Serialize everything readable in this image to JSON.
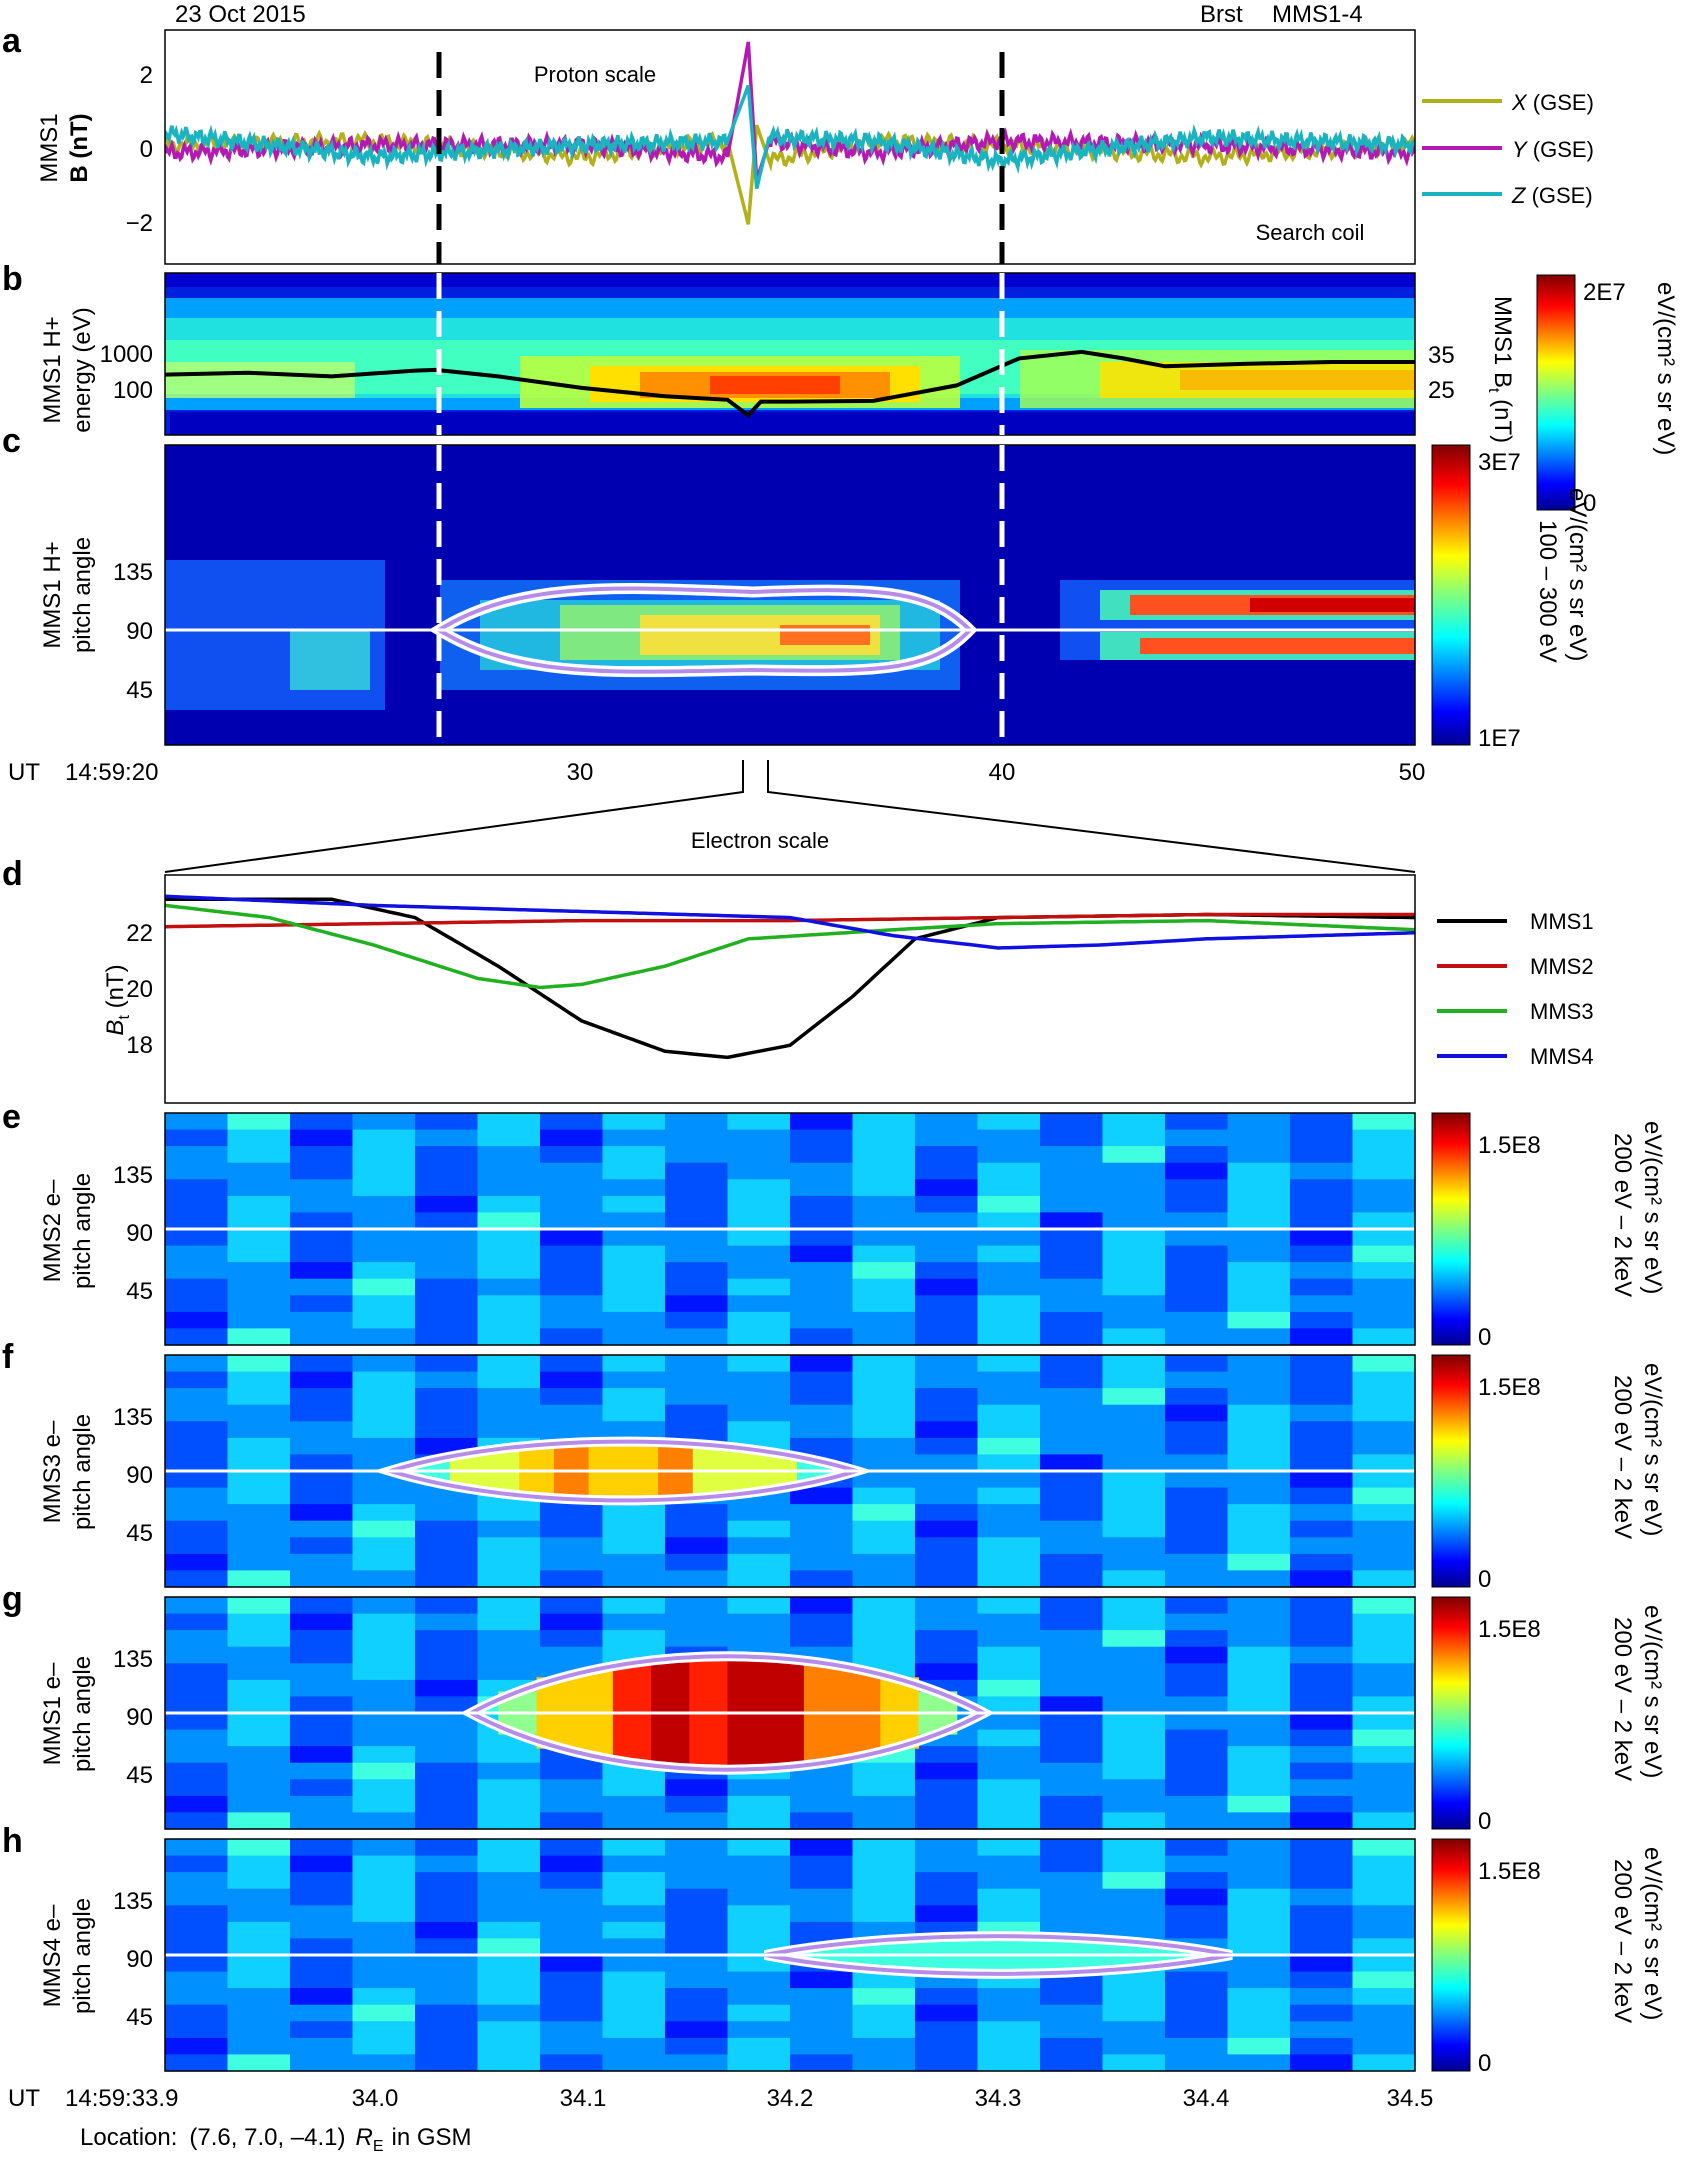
{
  "header": {
    "date": "23 Oct 2015",
    "mode": "Brst",
    "spacecraft": "MMS1-4"
  },
  "colors": {
    "x_gse": "#b3b01a",
    "y_gse": "#b31ab3",
    "z_gse": "#1ab3c0",
    "mms1": "#000000",
    "mms2": "#c01010",
    "mms3": "#20b020",
    "mms4": "#1010e0",
    "contour": "#b58ce8"
  },
  "panels": {
    "a": {
      "letter": "a",
      "ylabel1": "MMS1",
      "ylabel2": "B (nT)",
      "annotation_top": "Proton scale",
      "annotation_bottom": "Search coil"
    },
    "b": {
      "letter": "b",
      "ylabel1": "MMS1 H+",
      "ylabel2": "energy (eV)",
      "right_label_pre": "MMS1 B",
      "right_label_sub": "t",
      "right_label_post": " (nT)",
      "colorbar_label": "eV/(cm² s sr eV)",
      "colorbar_max": "2E7",
      "colorbar_min": "0"
    },
    "c": {
      "letter": "c",
      "ylabel1": "MMS1 H+",
      "ylabel2": "pitch angle",
      "colorbar_label1": "100 – 300 eV",
      "colorbar_label2": "eV/(cm² s sr eV)",
      "colorbar_max": "3E7",
      "colorbar_min": "1E7"
    },
    "axis1": {
      "ut": "UT",
      "start": "14:59:20"
    },
    "zoom_title": "Electron scale",
    "d": {
      "letter": "d",
      "ylabel_pre": "B",
      "ylabel_sub": "t",
      "ylabel_post": " (nT)"
    },
    "e": {
      "letter": "e",
      "ylabel1": "MMS2 e–",
      "ylabel2": "pitch angle"
    },
    "f": {
      "letter": "f",
      "ylabel1": "MMS3 e–",
      "ylabel2": "pitch angle"
    },
    "g": {
      "letter": "g",
      "ylabel1": "MMS1 e–",
      "ylabel2": "pitch angle"
    },
    "h": {
      "letter": "h",
      "ylabel1": "MMS4 e–",
      "ylabel2": "pitch angle"
    },
    "electron_colorbar": {
      "label1": "200 eV – 2 keV",
      "label2": "eV/(cm² s sr eV)",
      "max": "1.5E8",
      "min": "0"
    },
    "axis2": {
      "ut": "UT",
      "start": "14:59:33.9"
    },
    "location": {
      "prefix": "Location:",
      "coords": "(7.6, 7.0, –4.1)",
      "unit": "R",
      "unit_sub": "E",
      "frame": "in GSM"
    }
  },
  "chart_data": [
    {
      "type": "line",
      "panel": "a",
      "title": "MMS1 search coil magnetic field",
      "ylabel": "MMS1 B (nT)",
      "ylim": [
        -2.9,
        3.0
      ],
      "yticks": [
        "2",
        "0",
        "−2"
      ],
      "xlim_seconds": [
        20,
        50
      ],
      "series": [
        {
          "name": "X (GSE)",
          "label_var": "X",
          "label_rest": " (GSE)",
          "color": "#b3b01a",
          "x": [
            20,
            25,
            30,
            33.5,
            34.0,
            34.2,
            34.5,
            37,
            40,
            45,
            50
          ],
          "y": [
            0.1,
            0.2,
            -0.2,
            0.2,
            -1.9,
            0.6,
            -0.3,
            0.2,
            0.1,
            -0.2,
            0.1
          ]
        },
        {
          "name": "Y (GSE)",
          "label_var": "Y",
          "label_rest": " (GSE)",
          "color": "#b31ab3",
          "x": [
            20,
            25,
            30,
            33.5,
            34.0,
            34.2,
            34.5,
            37,
            40,
            45,
            50
          ],
          "y": [
            -0.1,
            0.1,
            0.1,
            -0.2,
            2.7,
            -0.8,
            0.2,
            -0.1,
            0.2,
            0.1,
            -0.1
          ]
        },
        {
          "name": "Z (GSE)",
          "label_var": "Z",
          "label_rest": " (GSE)",
          "color": "#1ab3c0",
          "x": [
            20,
            25,
            30,
            33.5,
            34.0,
            34.2,
            34.5,
            37,
            40,
            45,
            50
          ],
          "y": [
            0.4,
            -0.2,
            0.1,
            0.2,
            1.6,
            -1.0,
            0.3,
            0.2,
            -0.3,
            0.3,
            0.1
          ]
        }
      ],
      "markers_seconds": [
        26.5,
        40.1
      ]
    },
    {
      "type": "heatmap",
      "panel": "b",
      "title": "MMS1 H+ energy spectrogram",
      "yscale": "log",
      "yticks": [
        "1000",
        "100"
      ],
      "colorbar": [
        0,
        20000000
      ],
      "overlay": {
        "name": "MMS1 Bt",
        "right_ticks": [
          "35",
          "25"
        ],
        "x": [
          20,
          22,
          24,
          26,
          26.5,
          28,
          30,
          32,
          33.5,
          34.0,
          34.3,
          35,
          37,
          39,
          40.5,
          42,
          43,
          44,
          46,
          48,
          50
        ],
        "y": [
          31.5,
          32.0,
          31.0,
          32.6,
          32.8,
          31.0,
          27.8,
          25.5,
          24.5,
          20.2,
          24.0,
          24.0,
          24.2,
          28.5,
          36.0,
          37.8,
          36.0,
          33.8,
          34.5,
          35.0,
          35.0
        ]
      }
    },
    {
      "type": "heatmap",
      "panel": "c",
      "title": "MMS1 H+ pitch angle 100–300 eV",
      "yticks": [
        "135",
        "90",
        "45"
      ],
      "colorbar": [
        10000000,
        30000000
      ],
      "xticks": [
        "30",
        "40",
        "50"
      ]
    },
    {
      "type": "line",
      "panel": "d",
      "ylabel": "Bt (nT)",
      "ylim": [
        16.3,
        23.8
      ],
      "yticks": [
        "22",
        "20",
        "18"
      ],
      "xlim_seconds": [
        33.9,
        34.5
      ],
      "series": [
        {
          "name": "MMS1",
          "color": "#000000",
          "x": [
            33.9,
            33.98,
            34.02,
            34.06,
            34.1,
            34.14,
            34.17,
            34.2,
            34.23,
            34.26,
            34.3,
            34.4,
            34.5
          ],
          "y": [
            23.0,
            23.0,
            22.4,
            20.8,
            19.0,
            18.0,
            17.8,
            18.2,
            19.8,
            21.7,
            22.4,
            22.5,
            22.4
          ]
        },
        {
          "name": "MMS2",
          "color": "#c01010",
          "x": [
            33.9,
            34.0,
            34.1,
            34.2,
            34.3,
            34.4,
            34.5
          ],
          "y": [
            22.1,
            22.2,
            22.3,
            22.3,
            22.4,
            22.5,
            22.5
          ]
        },
        {
          "name": "MMS3",
          "color": "#20b020",
          "x": [
            33.9,
            33.95,
            34.0,
            34.05,
            34.08,
            34.1,
            34.14,
            34.18,
            34.25,
            34.3,
            34.4,
            34.5
          ],
          "y": [
            22.8,
            22.4,
            21.5,
            20.4,
            20.1,
            20.2,
            20.8,
            21.7,
            22.0,
            22.2,
            22.3,
            22.0
          ]
        },
        {
          "name": "MMS4",
          "color": "#1010e0",
          "x": [
            33.9,
            34.0,
            34.1,
            34.2,
            34.25,
            34.3,
            34.35,
            34.4,
            34.5
          ],
          "y": [
            23.1,
            22.8,
            22.6,
            22.4,
            21.8,
            21.4,
            21.5,
            21.7,
            21.9
          ]
        }
      ]
    },
    {
      "type": "heatmap",
      "panel": "e",
      "title": "MMS2 e- pitch angle 200 eV – 2 keV",
      "yticks": [
        "135",
        "90",
        "45"
      ],
      "colorbar": [
        0,
        150000000
      ],
      "peak": null
    },
    {
      "type": "heatmap",
      "panel": "f",
      "title": "MMS3 e- pitch angle 200 eV – 2 keV",
      "yticks": [
        "135",
        "90",
        "45"
      ],
      "colorbar": [
        0,
        150000000
      ],
      "peak_time_range": [
        34.02,
        34.22
      ],
      "peak_pitch_angle": 90
    },
    {
      "type": "heatmap",
      "panel": "g",
      "title": "MMS1 e- pitch angle 200 eV – 2 keV",
      "yticks": [
        "135",
        "90",
        "45"
      ],
      "colorbar": [
        0,
        150000000
      ],
      "peak_time_range": [
        34.06,
        34.28
      ],
      "peak_pitch_angle": 90
    },
    {
      "type": "heatmap",
      "panel": "h",
      "title": "MMS4 e- pitch angle 200 eV – 2 keV",
      "yticks": [
        "135",
        "90",
        "45"
      ],
      "colorbar": [
        0,
        150000000
      ],
      "peak_time_range": [
        34.2,
        34.4
      ],
      "peak_pitch_angle": 90,
      "xticks": [
        "34.0",
        "34.1",
        "34.2",
        "34.3",
        "34.4",
        "34.5"
      ]
    }
  ]
}
